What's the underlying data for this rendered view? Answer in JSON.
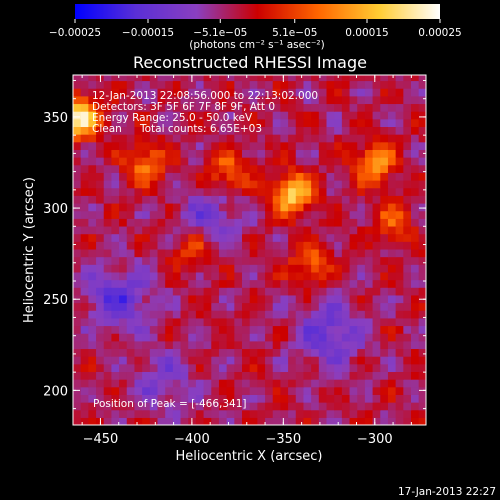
{
  "chart_data": {
    "type": "heatmap",
    "title": "Reconstructed RHESSI Image",
    "xlabel": "Heliocentric X (arcsec)",
    "ylabel": "Heliocentric Y (arcsec)",
    "xlim": [
      -465,
      -272
    ],
    "ylim": [
      181,
      373
    ],
    "x_ticks": [
      -450,
      -400,
      -350,
      -300
    ],
    "y_ticks": [
      200,
      250,
      300,
      350
    ],
    "x_tick_labels": [
      "−450",
      "−400",
      "−350",
      "−300"
    ],
    "y_tick_labels": [
      "200",
      "250",
      "300",
      "350"
    ],
    "colorbar": {
      "range": [
        -0.00025,
        0.00025
      ],
      "ticks": [
        -0.00025,
        -0.00015,
        -5.1e-05,
        5.1e-05,
        0.00015,
        0.00025
      ],
      "tick_labels": [
        "−0.00025",
        "−0.00015",
        "−5.1e−05",
        "5.1e−05",
        "0.00015",
        "0.00025"
      ],
      "units_label": "(photons cm⁻² s⁻¹ asec⁻²)",
      "colors": [
        "#0000ff",
        "#5a2fd6",
        "#8a3fc0",
        "#cc0000",
        "#ff6600",
        "#ffcc33",
        "#ffffff"
      ]
    },
    "info": {
      "time_range": "12-Jan-2013 22:08:56.000 to 22:13:02.000",
      "detectors": "Detectors: 3F 5F 6F 7F 8F 9F, Att 0",
      "energy_range": "Energy Range: 25.0 - 50.0 keV",
      "algorithm": "Clean",
      "total_counts": "Total counts: 6.65E+03"
    },
    "peak_label": "Position of Peak = [-466,341]",
    "peak": [
      -466,
      341
    ],
    "hot_sources": [
      {
        "x": -462,
        "y": 350,
        "value": 0.00025
      },
      {
        "x": -345,
        "y": 308,
        "value": 0.00021
      },
      {
        "x": -300,
        "y": 325,
        "value": 0.00016
      },
      {
        "x": -425,
        "y": 325,
        "value": 0.00013
      },
      {
        "x": -380,
        "y": 320,
        "value": 0.00012
      },
      {
        "x": -335,
        "y": 270,
        "value": 0.00011
      },
      {
        "x": -290,
        "y": 292,
        "value": 0.0001
      },
      {
        "x": -400,
        "y": 278,
        "value": 9e-05
      }
    ],
    "cold_sources": [
      {
        "x": -440,
        "y": 250,
        "value": -0.00012
      },
      {
        "x": -325,
        "y": 232,
        "value": -0.00011
      },
      {
        "x": -390,
        "y": 295,
        "value": -9e-05
      },
      {
        "x": -415,
        "y": 205,
        "value": -7e-05
      }
    ]
  },
  "footer": {
    "timestamp": "17-Jan-2013 22:27"
  }
}
